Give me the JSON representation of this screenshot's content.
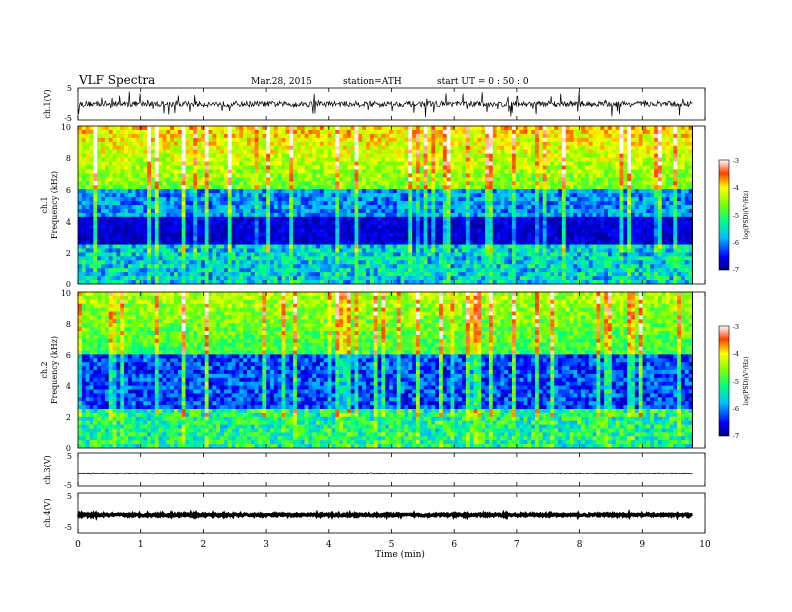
{
  "header": {
    "title": "VLF  Spectra",
    "date": "Mar.28, 2015",
    "station": "station=ATH",
    "start_ut": "start  UT =   0 : 50 : 0"
  },
  "chart_data": [
    {
      "type": "line",
      "panel": "ch1-waveform",
      "ylabel": "ch.1(V)",
      "yticks": [
        "5",
        "-5"
      ],
      "ylim": [
        -5,
        5
      ],
      "xlim": [
        0,
        10
      ],
      "data_end_min": 9.8,
      "baseline": 0.0,
      "color": "#000000"
    },
    {
      "type": "heatmap",
      "panel": "ch1-spectrogram",
      "ylabel_top": "ch.1",
      "ylabel": "Frequency  (kHz)",
      "yticks": [
        "10",
        "8",
        "6",
        "4",
        "2",
        "0"
      ],
      "ylim": [
        0,
        10
      ],
      "xlim": [
        0,
        10
      ],
      "data_end_min": 9.8,
      "colorbar": {
        "label": "log(PSD)(V²/Hz)",
        "ticks": [
          "-3",
          "-4",
          "-5",
          "-6",
          "-7"
        ],
        "range": [
          -7,
          -3
        ]
      }
    },
    {
      "type": "heatmap",
      "panel": "ch2-spectrogram",
      "ylabel_top": "ch.2",
      "ylabel": "Frequency  (kHz)",
      "yticks": [
        "10",
        "8",
        "6",
        "4",
        "2",
        "0"
      ],
      "ylim": [
        0,
        10
      ],
      "xlim": [
        0,
        10
      ],
      "data_end_min": 9.8,
      "colorbar": {
        "label": "log(PSD)(V²/Hz)",
        "ticks": [
          "-3",
          "-4",
          "-5",
          "-6",
          "-7"
        ],
        "range": [
          -7,
          -3
        ]
      }
    },
    {
      "type": "line",
      "panel": "ch3-waveform",
      "ylabel": "ch.3(V)",
      "yticks": [
        "5",
        "-5"
      ],
      "ylim": [
        -5,
        5
      ],
      "xlim": [
        0,
        10
      ],
      "data_end_min": 9.8,
      "baseline": -1.2,
      "color": "#000000"
    },
    {
      "type": "line",
      "panel": "ch4-waveform",
      "ylabel": "ch.4(V)",
      "yticks": [
        "5",
        "-5"
      ],
      "ylim": [
        -5,
        5
      ],
      "xlim": [
        0,
        10
      ],
      "data_end_min": 9.8,
      "baseline": -0.5,
      "color": "#000000"
    }
  ],
  "xaxis": {
    "label": "Time  (min)",
    "ticks": [
      "0",
      "1",
      "2",
      "3",
      "4",
      "5",
      "6",
      "7",
      "8",
      "9",
      "10"
    ]
  }
}
